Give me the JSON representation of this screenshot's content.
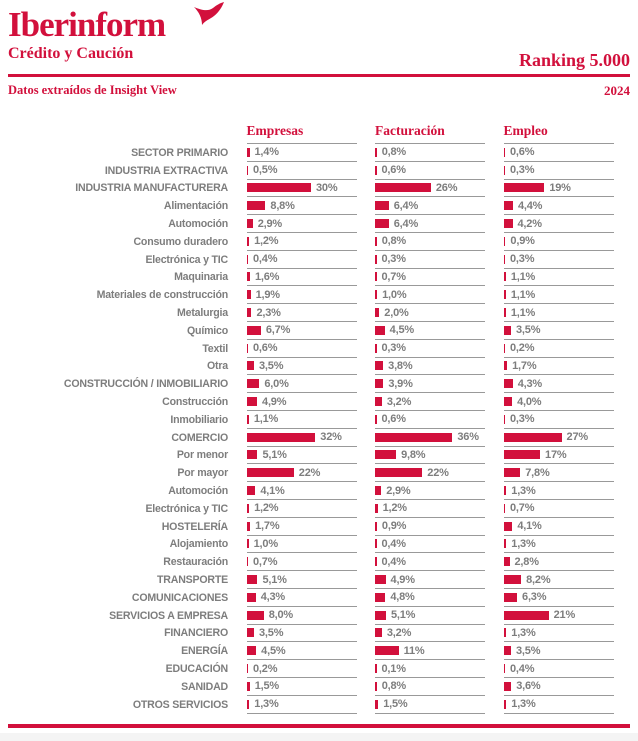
{
  "header": {
    "logo_title": "Iberinform",
    "logo_subtitle": "Crédito y Caución",
    "ranking_title": "Ranking 5.000",
    "source_note": "Datos extraídos de Insight View",
    "year": "2024"
  },
  "colors": {
    "accent_red": "#d2103c",
    "text_gray": "#7d7d7d",
    "line_gray": "#999999"
  },
  "chart_data": {
    "type": "bar",
    "title": "Ranking 5.000",
    "subtitle": "Datos extraídos de Insight View · 2024",
    "unit": "%",
    "xlim": [
      0,
      40
    ],
    "orientation": "horizontal",
    "columns": [
      "Empresas",
      "Facturación",
      "Empleo"
    ],
    "rows": [
      {
        "label": "SECTOR PRIMARIO",
        "values": [
          1.4,
          0.8,
          0.6
        ],
        "display": [
          "1,4%",
          "0,8%",
          "0,6%"
        ]
      },
      {
        "label": "INDUSTRIA EXTRACTIVA",
        "values": [
          0.5,
          0.6,
          0.3
        ],
        "display": [
          "0,5%",
          "0,6%",
          "0,3%"
        ]
      },
      {
        "label": "INDUSTRIA MANUFACTURERA",
        "values": [
          30,
          26,
          19
        ],
        "display": [
          "30%",
          "26%",
          "19%"
        ]
      },
      {
        "label": "Alimentación",
        "values": [
          8.8,
          6.4,
          4.4
        ],
        "display": [
          "8,8%",
          "6,4%",
          "4,4%"
        ]
      },
      {
        "label": "Automoción",
        "values": [
          2.9,
          6.4,
          4.2
        ],
        "display": [
          "2,9%",
          "6,4%",
          "4,2%"
        ]
      },
      {
        "label": "Consumo duradero",
        "values": [
          1.2,
          0.8,
          0.9
        ],
        "display": [
          "1,2%",
          "0,8%",
          "0,9%"
        ]
      },
      {
        "label": "Electrónica y TIC",
        "values": [
          0.4,
          0.3,
          0.3
        ],
        "display": [
          "0,4%",
          "0,3%",
          "0,3%"
        ]
      },
      {
        "label": "Maquinaria",
        "values": [
          1.6,
          0.7,
          1.1
        ],
        "display": [
          "1,6%",
          "0,7%",
          "1,1%"
        ]
      },
      {
        "label": "Materiales de construcción",
        "values": [
          1.9,
          1.0,
          1.1
        ],
        "display": [
          "1,9%",
          "1,0%",
          "1,1%"
        ]
      },
      {
        "label": "Metalurgia",
        "values": [
          2.3,
          2.0,
          1.1
        ],
        "display": [
          "2,3%",
          "2,0%",
          "1,1%"
        ]
      },
      {
        "label": "Químico",
        "values": [
          6.7,
          4.5,
          3.5
        ],
        "display": [
          "6,7%",
          "4,5%",
          "3,5%"
        ]
      },
      {
        "label": "Textil",
        "values": [
          0.6,
          0.3,
          0.2
        ],
        "display": [
          "0,6%",
          "0,3%",
          "0,2%"
        ]
      },
      {
        "label": "Otra",
        "values": [
          3.5,
          3.8,
          1.7
        ],
        "display": [
          "3,5%",
          "3,8%",
          "1,7%"
        ]
      },
      {
        "label": "CONSTRUCCIÓN / INMOBILIARIO",
        "values": [
          6.0,
          3.9,
          4.3
        ],
        "display": [
          "6,0%",
          "3,9%",
          "4,3%"
        ]
      },
      {
        "label": "Construcción",
        "values": [
          4.9,
          3.2,
          4.0
        ],
        "display": [
          "4,9%",
          "3,2%",
          "4,0%"
        ]
      },
      {
        "label": "Inmobiliario",
        "values": [
          1.1,
          0.6,
          0.3
        ],
        "display": [
          "1,1%",
          "0,6%",
          "0,3%"
        ]
      },
      {
        "label": "COMERCIO",
        "values": [
          32,
          36,
          27
        ],
        "display": [
          "32%",
          "36%",
          "27%"
        ]
      },
      {
        "label": "Por menor",
        "values": [
          5.1,
          9.8,
          17
        ],
        "display": [
          "5,1%",
          "9,8%",
          "17%"
        ]
      },
      {
        "label": "Por mayor",
        "values": [
          22,
          22,
          7.8
        ],
        "display": [
          "22%",
          "22%",
          "7,8%"
        ]
      },
      {
        "label": "Automoción",
        "values": [
          4.1,
          2.9,
          1.3
        ],
        "display": [
          "4,1%",
          "2,9%",
          "1,3%"
        ]
      },
      {
        "label": "Electrónica y TIC",
        "values": [
          1.2,
          1.2,
          0.7
        ],
        "display": [
          "1,2%",
          "1,2%",
          "0,7%"
        ]
      },
      {
        "label": "HOSTELERÍA",
        "values": [
          1.7,
          0.9,
          4.1
        ],
        "display": [
          "1,7%",
          "0,9%",
          "4,1%"
        ]
      },
      {
        "label": "Alojamiento",
        "values": [
          1.0,
          0.4,
          1.3
        ],
        "display": [
          "1,0%",
          "0,4%",
          "1,3%"
        ]
      },
      {
        "label": "Restauración",
        "values": [
          0.7,
          0.4,
          2.8
        ],
        "display": [
          "0,7%",
          "0,4%",
          "2,8%"
        ]
      },
      {
        "label": "TRANSPORTE",
        "values": [
          5.1,
          4.9,
          8.2
        ],
        "display": [
          "5,1%",
          "4,9%",
          "8,2%"
        ]
      },
      {
        "label": "COMUNICACIONES",
        "values": [
          4.3,
          4.8,
          6.3
        ],
        "display": [
          "4,3%",
          "4,8%",
          "6,3%"
        ]
      },
      {
        "label": "SERVICIOS A EMPRESA",
        "values": [
          8.0,
          5.1,
          21
        ],
        "display": [
          "8,0%",
          "5,1%",
          "21%"
        ]
      },
      {
        "label": "FINANCIERO",
        "values": [
          3.5,
          3.2,
          1.3
        ],
        "display": [
          "3,5%",
          "3,2%",
          "1,3%"
        ]
      },
      {
        "label": "ENERGÍA",
        "values": [
          4.5,
          11,
          3.5
        ],
        "display": [
          "4,5%",
          "11%",
          "3,5%"
        ]
      },
      {
        "label": "EDUCACIÓN",
        "values": [
          0.2,
          0.1,
          0.4
        ],
        "display": [
          "0,2%",
          "0,1%",
          "0,4%"
        ]
      },
      {
        "label": "SANIDAD",
        "values": [
          1.5,
          0.8,
          3.6
        ],
        "display": [
          "1,5%",
          "0,8%",
          "3,6%"
        ]
      },
      {
        "label": "OTROS SERVICIOS",
        "values": [
          1.3,
          1.5,
          1.3
        ],
        "display": [
          "1,3%",
          "1,5%",
          "1,3%"
        ]
      }
    ]
  }
}
